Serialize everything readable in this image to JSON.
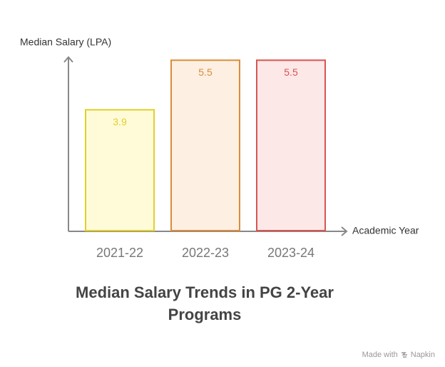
{
  "chart_data": {
    "type": "bar",
    "title": "Median Salary Trends in PG 2-Year Programs",
    "y_label": "Median Salary (LPA)",
    "x_label": "Academic Year",
    "categories": [
      "2021-22",
      "2022-23",
      "2023-24"
    ],
    "values": [
      3.9,
      5.5,
      5.5
    ],
    "colors": [
      "#fffbd8",
      "#fdefe2",
      "#fde8e8"
    ],
    "edge_colors": [
      "#e2cf2a",
      "#d98c3c",
      "#d8544f"
    ],
    "ylim": [
      0,
      5.6
    ]
  },
  "footer": {
    "prefix": "Made with",
    "brand": "Napkin"
  }
}
